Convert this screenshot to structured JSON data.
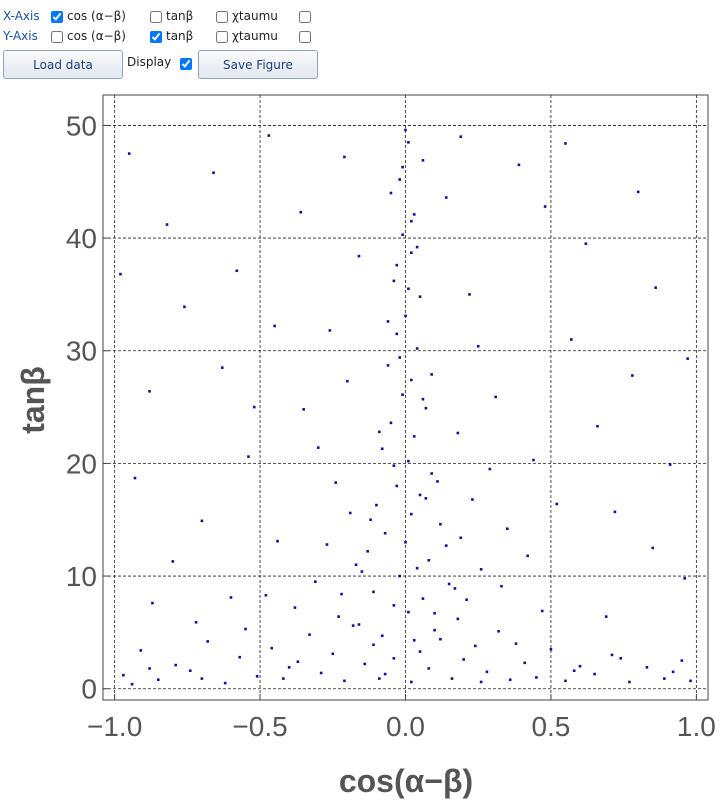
{
  "controls": {
    "rows": [
      {
        "label": "X-Axis",
        "options": [
          {
            "label": "cos (α−β)",
            "checked": true
          },
          {
            "label": "tanβ",
            "checked": false
          },
          {
            "label": "χtaumu",
            "checked": false
          },
          {
            "checked": false
          }
        ]
      },
      {
        "label": "Y-Axis",
        "options": [
          {
            "label": "cos (α−β)",
            "checked": false
          },
          {
            "label": "tanβ",
            "checked": true
          },
          {
            "label": "χtaumu",
            "checked": false
          },
          {
            "checked": false
          }
        ]
      }
    ],
    "load_button": "Load data",
    "display": {
      "label": "Display",
      "checked": true
    },
    "save_button": "Save Figure"
  },
  "chart_data": {
    "type": "scatter",
    "x_label": "cos(α−β)",
    "y_label": "tanβ",
    "xlim": [
      -1.04,
      1.04
    ],
    "ylim": [
      -1,
      52.7
    ],
    "xticks": [
      {
        "value": -1,
        "label": "−1.0"
      },
      {
        "value": -0.5,
        "label": "−0.5"
      },
      {
        "value": 0,
        "label": "0.0"
      },
      {
        "value": 0.5,
        "label": "0.5"
      },
      {
        "value": 1,
        "label": "1.0"
      }
    ],
    "yticks": [
      0,
      10,
      20,
      30,
      40,
      50
    ],
    "grid": true,
    "series": [
      {
        "color": "#10109c",
        "x": [
          0.01,
          -0.02,
          0.03,
          -0.01,
          0.02,
          -0.04,
          0.05,
          0.0,
          -0.03,
          0.04,
          -0.06,
          0.02,
          -0.01,
          0.07,
          -0.05,
          0.03,
          -0.08,
          0.01,
          0.09,
          -0.03,
          0.05,
          -0.1,
          0.02,
          0.12,
          -0.07,
          0.0,
          -0.13,
          0.08,
          0.04,
          -0.02,
          0.15,
          -0.11,
          0.06,
          -0.04,
          0.01,
          0.18,
          -0.16,
          0.1,
          -0.08,
          0.03,
          0.0,
          0.06,
          -0.05,
          0.02,
          -0.03,
          0.01,
          -0.02,
          0.06,
          -0.04,
          0.07,
          -0.01,
          0.04,
          -0.06,
          0.09,
          -0.09,
          0.11,
          -0.12,
          0.14,
          -0.15,
          0.17,
          -0.97,
          -0.91,
          -0.85,
          -0.79,
          -0.74,
          -0.68,
          -0.62,
          -0.57,
          -0.51,
          -0.46,
          -0.42,
          -0.37,
          -0.33,
          -0.29,
          -0.25,
          -0.21,
          -0.18,
          -0.14,
          -0.11,
          -0.07,
          -0.04,
          0.02,
          0.05,
          0.08,
          0.12,
          0.16,
          0.2,
          0.24,
          0.28,
          0.32,
          0.36,
          0.41,
          0.45,
          0.5,
          0.55,
          0.6,
          0.65,
          0.71,
          0.77,
          0.83,
          0.89,
          0.95,
          0.98,
          -0.94,
          -0.88,
          -0.7,
          -0.55,
          -0.4,
          -0.23,
          -0.09,
          0.1,
          0.26,
          0.38,
          0.58,
          0.74,
          0.92,
          -0.38,
          -0.31,
          -0.27,
          -0.22,
          -0.19,
          -0.24,
          -0.17,
          -0.3,
          0.21,
          0.26,
          0.19,
          0.33,
          0.23,
          0.29,
          0.18,
          0.35,
          -0.35,
          0.31,
          -0.2,
          0.25,
          -0.44,
          0.42,
          -0.48,
          0.47,
          -0.26,
          0.22,
          -0.16,
          0.14,
          -0.21,
          0.19,
          -0.95,
          -0.82,
          -0.76,
          -0.88,
          -0.93,
          -0.8,
          -0.66,
          -0.58,
          -0.63,
          -0.54,
          -0.7,
          -0.47,
          -0.45,
          -0.52,
          -0.6,
          0.55,
          0.62,
          0.57,
          0.66,
          0.72,
          0.8,
          0.86,
          0.78,
          0.91,
          0.96,
          0.48,
          0.44,
          0.69,
          0.85,
          -0.72,
          0.97,
          -0.98,
          0.39,
          -0.36,
          0.52,
          -0.87
        ],
        "values": [
          48.5,
          45.2,
          42.1,
          40.3,
          38.7,
          36.2,
          34.8,
          33.1,
          31.5,
          30.2,
          28.7,
          27.4,
          26.1,
          24.9,
          23.6,
          22.4,
          21.3,
          20.2,
          19.1,
          18.0,
          17.2,
          16.3,
          15.5,
          14.6,
          13.8,
          13.0,
          12.2,
          11.4,
          10.7,
          10.0,
          9.3,
          8.6,
          8.0,
          7.4,
          6.8,
          6.2,
          5.7,
          5.2,
          4.7,
          4.3,
          49.6,
          46.9,
          44.0,
          41.5,
          37.6,
          35.5,
          29.4,
          25.7,
          19.8,
          16.9,
          46.3,
          39.2,
          32.6,
          27.9,
          22.8,
          18.4,
          15.0,
          12.7,
          10.4,
          8.9,
          1.2,
          3.4,
          0.8,
          2.1,
          1.6,
          4.2,
          0.5,
          2.8,
          1.1,
          3.6,
          0.9,
          2.4,
          4.8,
          1.4,
          3.1,
          0.7,
          5.6,
          2.2,
          3.9,
          1.3,
          2.7,
          0.6,
          3.3,
          1.8,
          4.4,
          0.9,
          2.6,
          3.8,
          1.5,
          5.1,
          0.8,
          2.3,
          1.0,
          3.5,
          0.7,
          2.0,
          1.3,
          3.0,
          0.6,
          1.9,
          0.9,
          2.5,
          0.7,
          0.4,
          1.8,
          0.9,
          5.3,
          1.9,
          6.4,
          0.9,
          6.7,
          0.6,
          4.0,
          1.6,
          2.7,
          1.5,
          7.2,
          9.5,
          12.8,
          8.4,
          15.6,
          18.3,
          11.0,
          21.4,
          7.9,
          10.6,
          13.4,
          9.1,
          16.8,
          19.5,
          22.7,
          14.2,
          24.8,
          25.9,
          27.3,
          30.4,
          13.1,
          11.8,
          8.3,
          6.9,
          31.8,
          35.0,
          38.4,
          43.6,
          47.2,
          49.0,
          47.5,
          41.2,
          33.9,
          26.4,
          18.7,
          11.3,
          45.8,
          37.1,
          28.5,
          20.6,
          14.9,
          49.1,
          32.2,
          25.0,
          8.1,
          48.4,
          39.5,
          31.0,
          23.3,
          15.7,
          44.1,
          35.6,
          27.8,
          19.9,
          9.8,
          42.8,
          20.3,
          6.4,
          12.5,
          5.9,
          29.3,
          36.8,
          46.5,
          42.3,
          16.4,
          7.6
        ]
      }
    ]
  }
}
